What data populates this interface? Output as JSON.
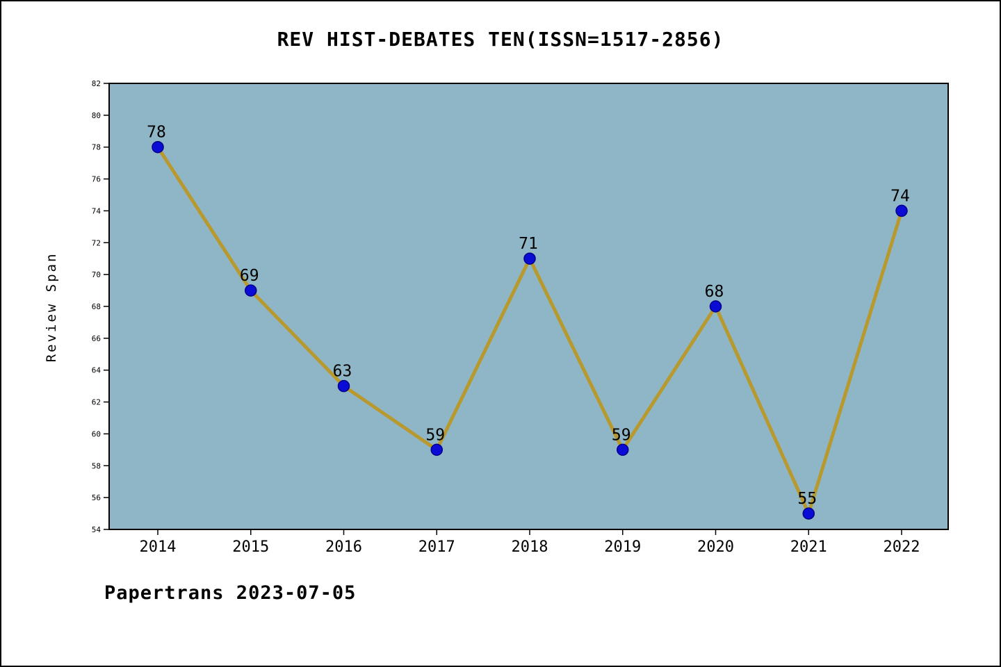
{
  "page": {
    "footer": "Papertrans 2023-07-05"
  },
  "chart_data": {
    "type": "line",
    "title": "REV HIST-DEBATES TEN(ISSN=1517-2856)",
    "categories": [
      "2014",
      "2015",
      "2016",
      "2017",
      "2018",
      "2019",
      "2020",
      "2021",
      "2022"
    ],
    "values": [
      78,
      69,
      63,
      59,
      71,
      59,
      68,
      55,
      74
    ],
    "xlabel": "",
    "ylabel": "Review Span",
    "ylim": [
      54,
      82
    ],
    "ytick_step": 2,
    "grid": false,
    "legend": "none",
    "colors": {
      "plot_background": "#8FB6C6",
      "line": "#B8992E",
      "marker_fill": "#0B0BD6",
      "marker_edge": "#00008B",
      "text": "#000000"
    }
  }
}
